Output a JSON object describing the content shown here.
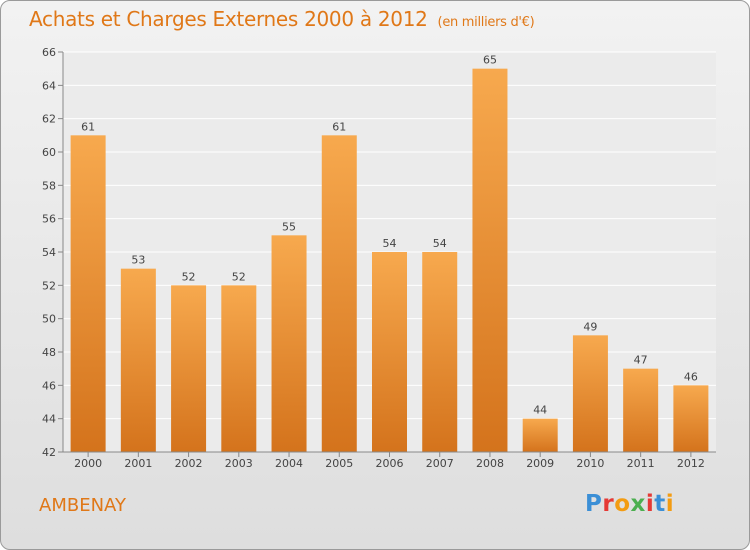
{
  "header": {
    "title": "Achats et Charges Externes 2000 à 2012",
    "unit": "(en milliers d'€)"
  },
  "footer": {
    "commune": "AMBENAY",
    "logo_letters": [
      "P",
      "r",
      "o",
      "x",
      "i",
      "t",
      "i"
    ],
    "logo_colors": [
      "#3b8fd6",
      "#e53935",
      "#f39c12",
      "#4caf50",
      "#e53935",
      "#3b8fd6",
      "#f39c12"
    ]
  },
  "colors": {
    "accent": "#e07818",
    "bar_light": "#f7a94e",
    "bar_dark": "#d4731c"
  },
  "chart_data": {
    "type": "bar",
    "categories": [
      "2000",
      "2001",
      "2002",
      "2003",
      "2004",
      "2005",
      "2006",
      "2007",
      "2008",
      "2009",
      "2010",
      "2011",
      "2012"
    ],
    "values": [
      61,
      53,
      52,
      52,
      55,
      61,
      54,
      54,
      65,
      44,
      49,
      47,
      46
    ],
    "title": "Achats et Charges Externes 2000 à 2012",
    "xlabel": "",
    "ylabel": "",
    "ylim": [
      42,
      66
    ],
    "yticks": [
      42,
      44,
      46,
      48,
      50,
      52,
      54,
      56,
      58,
      60,
      62,
      64,
      66
    ],
    "grid": true
  }
}
